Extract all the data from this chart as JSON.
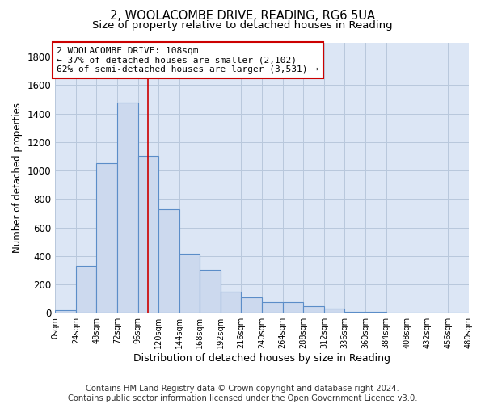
{
  "title_line1": "2, WOOLACOMBE DRIVE, READING, RG6 5UA",
  "title_line2": "Size of property relative to detached houses in Reading",
  "xlabel": "Distribution of detached houses by size in Reading",
  "ylabel": "Number of detached properties",
  "bar_edges": [
    0,
    24,
    48,
    72,
    96,
    120,
    144,
    168,
    192,
    216,
    240,
    264,
    288,
    312,
    336,
    360,
    384,
    408,
    432,
    456,
    480
  ],
  "bar_heights": [
    20,
    330,
    1050,
    1480,
    1100,
    730,
    415,
    300,
    150,
    110,
    75,
    75,
    45,
    30,
    5,
    5,
    0,
    0,
    0,
    0
  ],
  "bar_facecolor": "#ccd9ee",
  "bar_edgecolor": "#5b8dc8",
  "bar_linewidth": 0.8,
  "vline_x": 108,
  "vline_color": "#cc0000",
  "vline_linewidth": 1.2,
  "annotation_text": "2 WOOLACOMBE DRIVE: 108sqm\n← 37% of detached houses are smaller (2,102)\n62% of semi-detached houses are larger (3,531) →",
  "annotation_box_edgecolor": "#cc0000",
  "annotation_box_facecolor": "#ffffff",
  "annotation_fontsize": 8.0,
  "ylim": [
    0,
    1900
  ],
  "yticks": [
    0,
    200,
    400,
    600,
    800,
    1000,
    1200,
    1400,
    1600,
    1800
  ],
  "xtick_labels": [
    "0sqm",
    "24sqm",
    "48sqm",
    "72sqm",
    "96sqm",
    "120sqm",
    "144sqm",
    "168sqm",
    "192sqm",
    "216sqm",
    "240sqm",
    "264sqm",
    "288sqm",
    "312sqm",
    "336sqm",
    "360sqm",
    "384sqm",
    "408sqm",
    "432sqm",
    "456sqm",
    "480sqm"
  ],
  "grid_color": "#b8c8dc",
  "plot_background": "#dce6f5",
  "footer_line1": "Contains HM Land Registry data © Crown copyright and database right 2024.",
  "footer_line2": "Contains public sector information licensed under the Open Government Licence v3.0.",
  "footer_fontsize": 7.2,
  "title_fontsize1": 10.5,
  "title_fontsize2": 9.5,
  "ylabel_fontsize": 8.5,
  "xlabel_fontsize": 9.0
}
